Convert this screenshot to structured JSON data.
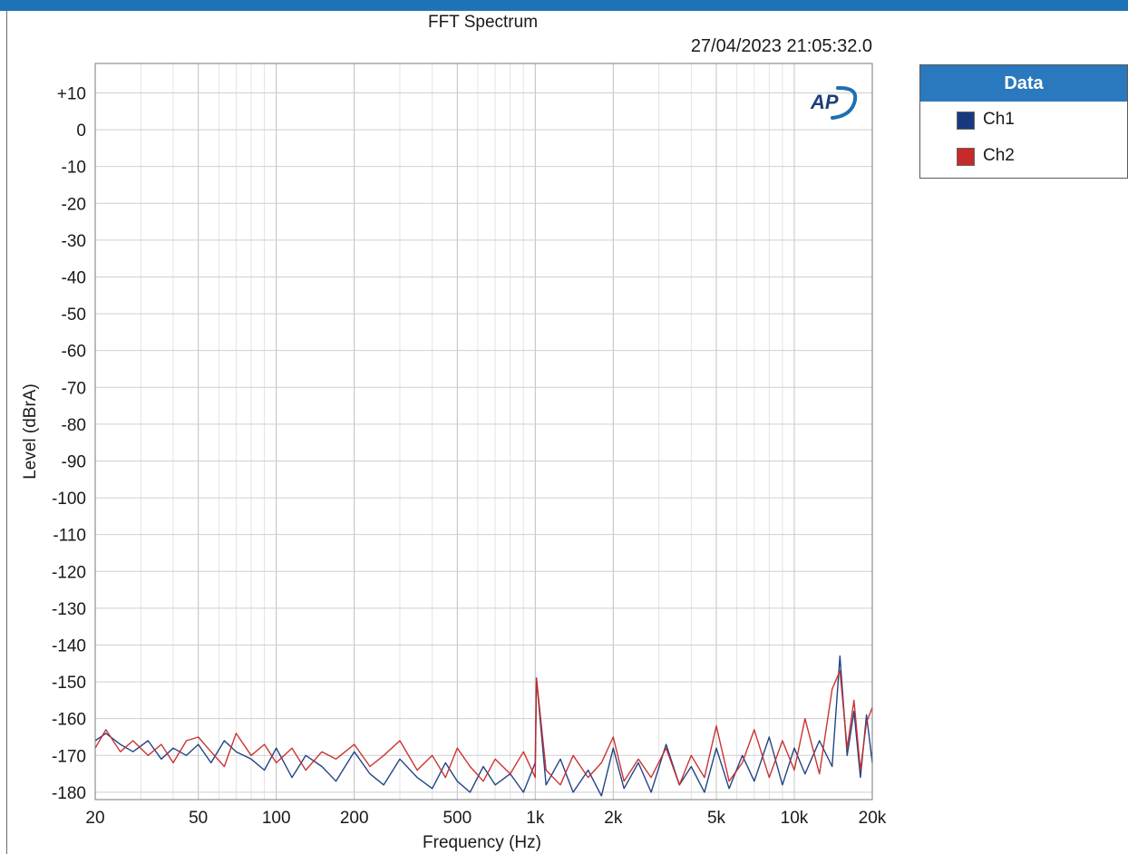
{
  "title": "FFT Spectrum",
  "timestamp": "27/04/2023 21:05:32.0",
  "legend": {
    "header": "Data",
    "items": [
      {
        "label": "Ch1",
        "color": "#173a7e"
      },
      {
        "label": "Ch2",
        "color": "#c62a2a"
      }
    ]
  },
  "logo_text": "AP",
  "chart_data": {
    "type": "line",
    "title": "FFT Spectrum",
    "xlabel": "Frequency (Hz)",
    "ylabel": "Level (dBrA)",
    "xscale": "log",
    "xlim": [
      20,
      20000
    ],
    "ylim": [
      -182,
      18
    ],
    "x_ticks": [
      20,
      50,
      100,
      200,
      500,
      1000,
      2000,
      5000,
      10000,
      20000
    ],
    "x_tick_labels": [
      "20",
      "50",
      "100",
      "200",
      "500",
      "1k",
      "2k",
      "5k",
      "10k",
      "20k"
    ],
    "y_ticks": [
      10,
      0,
      -10,
      -20,
      -30,
      -40,
      -50,
      -60,
      -70,
      -80,
      -90,
      -100,
      -110,
      -120,
      -130,
      -140,
      -150,
      -160,
      -170,
      -180
    ],
    "y_tick_labels": [
      "+10",
      "0",
      "-10",
      "-20",
      "-30",
      "-40",
      "-50",
      "-60",
      "-70",
      "-80",
      "-90",
      "-100",
      "-110",
      "-120",
      "-130",
      "-140",
      "-150",
      "-160",
      "-170",
      "-180"
    ],
    "grid": true,
    "legend_position": "right",
    "series": [
      {
        "name": "Ch1",
        "color": "#173a7e",
        "x": [
          20,
          22,
          25,
          28,
          32,
          36,
          40,
          45,
          50,
          56,
          63,
          70,
          80,
          90,
          100,
          115,
          130,
          150,
          170,
          200,
          230,
          260,
          300,
          350,
          400,
          450,
          500,
          560,
          630,
          700,
          800,
          900,
          1000,
          1010,
          1100,
          1250,
          1400,
          1600,
          1800,
          2000,
          2200,
          2500,
          2800,
          3200,
          3600,
          4000,
          4500,
          5000,
          5600,
          6300,
          7000,
          8000,
          9000,
          10000,
          11000,
          12500,
          14000,
          15000,
          16000,
          17000,
          18000,
          19000,
          20000
        ],
        "y": [
          -166,
          -164,
          -167,
          -169,
          -166,
          -171,
          -168,
          -170,
          -167,
          -172,
          -166,
          -169,
          -171,
          -174,
          -168,
          -176,
          -170,
          -173,
          -177,
          -169,
          -175,
          -178,
          -171,
          -176,
          -179,
          -172,
          -177,
          -180,
          -173,
          -178,
          -175,
          -180,
          -172,
          -149,
          -178,
          -171,
          -180,
          -174,
          -181,
          -168,
          -179,
          -172,
          -180,
          -167,
          -178,
          -173,
          -180,
          -168,
          -179,
          -170,
          -177,
          -165,
          -178,
          -168,
          -175,
          -166,
          -173,
          -143,
          -170,
          -158,
          -176,
          -159,
          -172
        ]
      },
      {
        "name": "Ch2",
        "color": "#c62a2a",
        "x": [
          20,
          22,
          25,
          28,
          32,
          36,
          40,
          45,
          50,
          56,
          63,
          70,
          80,
          90,
          100,
          115,
          130,
          150,
          170,
          200,
          230,
          260,
          300,
          350,
          400,
          450,
          500,
          560,
          630,
          700,
          800,
          900,
          1000,
          1010,
          1100,
          1250,
          1400,
          1600,
          1800,
          2000,
          2200,
          2500,
          2800,
          3200,
          3600,
          4000,
          4500,
          5000,
          5600,
          6300,
          7000,
          8000,
          9000,
          10000,
          11000,
          12500,
          14000,
          15000,
          16000,
          17000,
          18000,
          19000,
          20000
        ],
        "y": [
          -168,
          -163,
          -169,
          -166,
          -170,
          -167,
          -172,
          -166,
          -165,
          -169,
          -173,
          -164,
          -170,
          -167,
          -172,
          -168,
          -174,
          -169,
          -171,
          -167,
          -173,
          -170,
          -166,
          -174,
          -170,
          -176,
          -168,
          -173,
          -177,
          -171,
          -175,
          -169,
          -176,
          -149,
          -174,
          -178,
          -170,
          -176,
          -172,
          -165,
          -177,
          -171,
          -176,
          -168,
          -178,
          -170,
          -176,
          -162,
          -177,
          -172,
          -163,
          -176,
          -166,
          -174,
          -160,
          -175,
          -152,
          -147,
          -168,
          -155,
          -174,
          -161,
          -157
        ]
      }
    ]
  }
}
